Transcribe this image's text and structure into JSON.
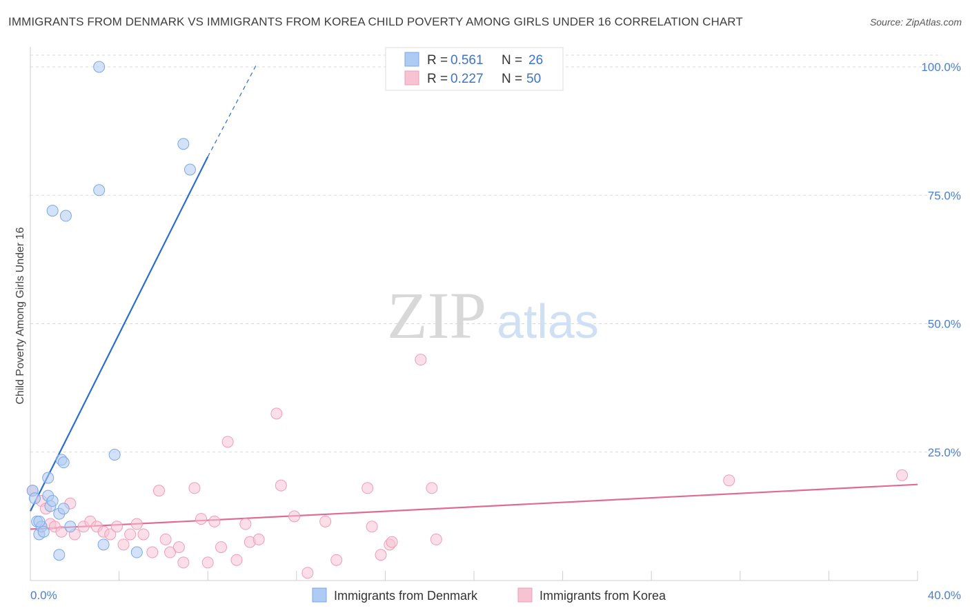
{
  "title": "IMMIGRANTS FROM DENMARK VS IMMIGRANTS FROM KOREA CHILD POVERTY AMONG GIRLS UNDER 16 CORRELATION CHART",
  "source": "Source: ZipAtlas.com",
  "watermark": {
    "zip": "ZIP",
    "atlas": "atlas"
  },
  "chart_data": {
    "type": "scatter",
    "title": "IMMIGRANTS FROM DENMARK VS IMMIGRANTS FROM KOREA CHILD POVERTY AMONG GIRLS UNDER 16 CORRELATION CHART",
    "xlabel": "",
    "ylabel": "Child Poverty Among Girls Under 16",
    "xlim": [
      0,
      40
    ],
    "ylim": [
      0,
      100
    ],
    "x_tick_labels": [
      "0.0%",
      "40.0%"
    ],
    "y_ticks": [
      25,
      50,
      75,
      100
    ],
    "y_tick_labels": [
      "25.0%",
      "50.0%",
      "75.0%",
      "100.0%"
    ],
    "grid": true,
    "legend_position": "top-center",
    "series": [
      {
        "name": "Immigrants from Denmark",
        "color": "#7aa7e8",
        "fill": "#aecbf3",
        "line_color": "#2a6dd0",
        "R": "0.561",
        "N": "26",
        "trend": {
          "x0": 0.0,
          "y0": 13.5,
          "x1": 8.0,
          "y1": 82.5,
          "dash_to_x": 10.2,
          "dash_to_y": 100.5
        },
        "points": [
          [
            0.1,
            17.5
          ],
          [
            0.3,
            11.5
          ],
          [
            0.4,
            9.0
          ],
          [
            0.5,
            10.5
          ],
          [
            0.6,
            9.5
          ],
          [
            0.8,
            16.5
          ],
          [
            0.8,
            20.0
          ],
          [
            0.9,
            14.5
          ],
          [
            1.0,
            15.5
          ],
          [
            1.0,
            72.0
          ],
          [
            1.3,
            13.0
          ],
          [
            1.4,
            23.5
          ],
          [
            1.5,
            14.0
          ],
          [
            1.5,
            23.0
          ],
          [
            1.6,
            71.0
          ],
          [
            1.8,
            10.5
          ],
          [
            1.3,
            5.0
          ],
          [
            3.1,
            100.0
          ],
          [
            3.1,
            76.0
          ],
          [
            3.3,
            7.0
          ],
          [
            3.8,
            24.5
          ],
          [
            4.8,
            5.5
          ],
          [
            6.9,
            85.0
          ],
          [
            7.2,
            80.0
          ],
          [
            0.4,
            11.5
          ],
          [
            0.2,
            16.0
          ]
        ]
      },
      {
        "name": "Immigrants from Korea",
        "color": "#ee9db5",
        "fill": "#f7c3d3",
        "line_color": "#e06a95",
        "R": "0.227",
        "N": "50",
        "trend": {
          "x0": 0.0,
          "y0": 10.0,
          "x1": 40.0,
          "y1": 18.7
        },
        "points": [
          [
            0.1,
            17.5
          ],
          [
            0.5,
            15.5
          ],
          [
            0.7,
            14.0
          ],
          [
            0.9,
            11.0
          ],
          [
            1.1,
            10.5
          ],
          [
            1.4,
            9.5
          ],
          [
            1.8,
            15.0
          ],
          [
            2.0,
            9.0
          ],
          [
            2.4,
            10.5
          ],
          [
            2.7,
            11.5
          ],
          [
            3.0,
            10.5
          ],
          [
            3.3,
            9.5
          ],
          [
            3.6,
            9.0
          ],
          [
            3.9,
            10.5
          ],
          [
            4.2,
            7.0
          ],
          [
            4.5,
            9.0
          ],
          [
            4.8,
            11.0
          ],
          [
            5.1,
            9.0
          ],
          [
            5.5,
            5.5
          ],
          [
            5.8,
            17.5
          ],
          [
            6.1,
            8.0
          ],
          [
            6.3,
            5.5
          ],
          [
            6.7,
            6.5
          ],
          [
            6.9,
            3.5
          ],
          [
            7.4,
            18.0
          ],
          [
            7.7,
            12.0
          ],
          [
            8.0,
            3.5
          ],
          [
            8.3,
            11.5
          ],
          [
            8.6,
            6.5
          ],
          [
            8.9,
            27.0
          ],
          [
            9.3,
            4.0
          ],
          [
            9.7,
            11.0
          ],
          [
            9.9,
            7.5
          ],
          [
            10.3,
            8.0
          ],
          [
            11.1,
            32.5
          ],
          [
            11.3,
            18.5
          ],
          [
            11.9,
            12.5
          ],
          [
            12.5,
            1.5
          ],
          [
            13.3,
            11.5
          ],
          [
            13.8,
            4.0
          ],
          [
            15.2,
            18.0
          ],
          [
            15.4,
            10.5
          ],
          [
            15.8,
            5.0
          ],
          [
            16.2,
            7.0
          ],
          [
            16.3,
            7.5
          ],
          [
            17.6,
            43.0
          ],
          [
            18.1,
            18.0
          ],
          [
            18.3,
            8.0
          ],
          [
            31.5,
            19.5
          ],
          [
            39.3,
            20.5
          ]
        ]
      }
    ]
  }
}
